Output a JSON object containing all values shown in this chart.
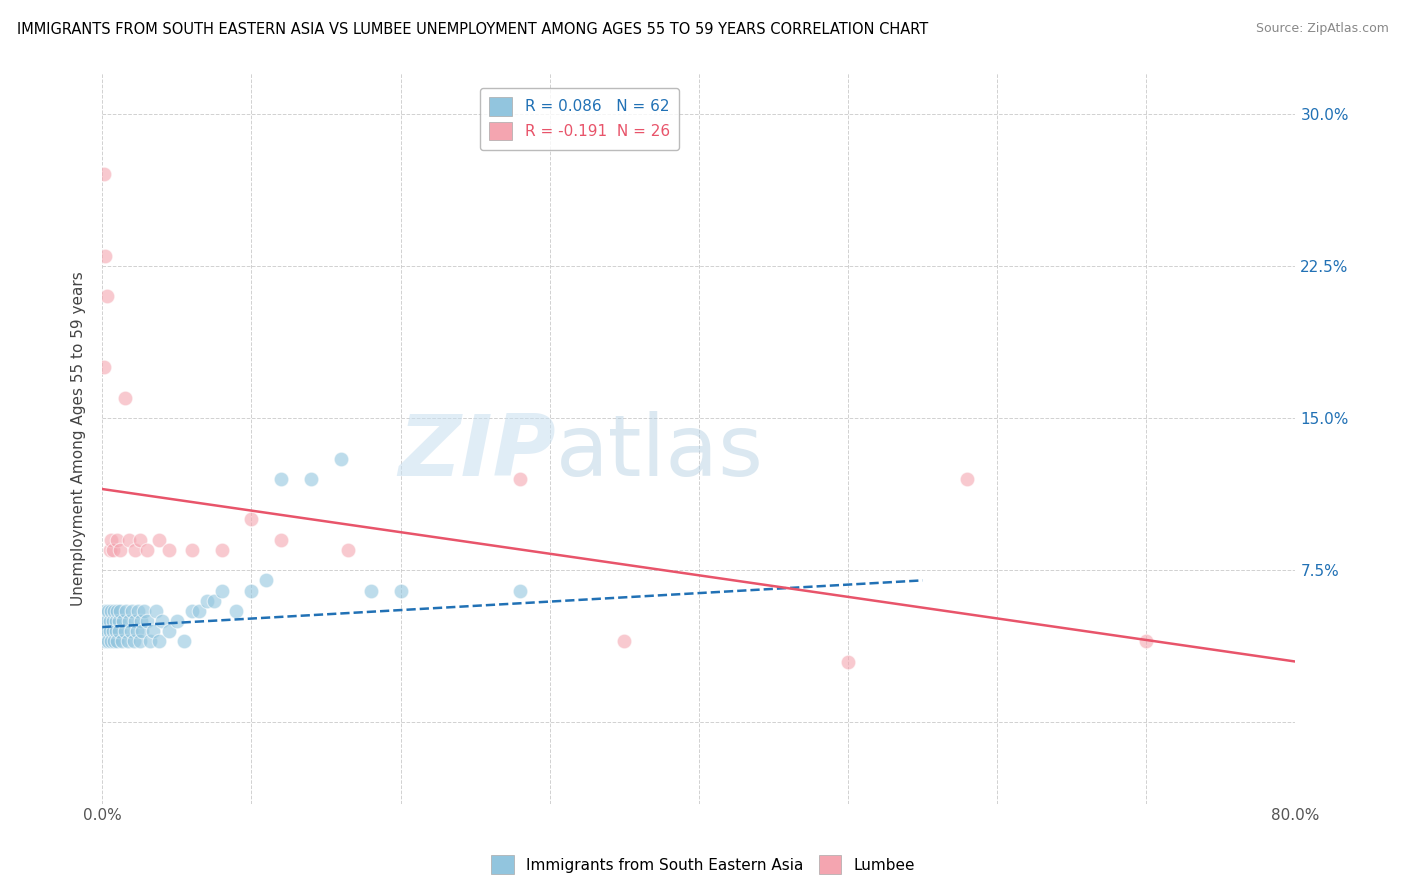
{
  "title": "IMMIGRANTS FROM SOUTH EASTERN ASIA VS LUMBEE UNEMPLOYMENT AMONG AGES 55 TO 59 YEARS CORRELATION CHART",
  "source": "Source: ZipAtlas.com",
  "ylabel": "Unemployment Among Ages 55 to 59 years",
  "xlim": [
    0.0,
    0.8
  ],
  "ylim": [
    -0.04,
    0.32
  ],
  "xticks": [
    0.0,
    0.1,
    0.2,
    0.3,
    0.4,
    0.5,
    0.6,
    0.7,
    0.8
  ],
  "xticklabels": [
    "0.0%",
    "",
    "",
    "",
    "",
    "",
    "",
    "",
    "80.0%"
  ],
  "yticks": [
    0.0,
    0.075,
    0.15,
    0.225,
    0.3
  ],
  "yticklabels": [
    "",
    "7.5%",
    "15.0%",
    "22.5%",
    "30.0%"
  ],
  "blue_r": 0.086,
  "blue_n": 62,
  "pink_r": -0.191,
  "pink_n": 26,
  "blue_color": "#92c5de",
  "pink_color": "#f4a5b0",
  "blue_line_color": "#2171b5",
  "pink_line_color": "#e8546a",
  "watermark_left": "ZIP",
  "watermark_right": "atlas",
  "blue_scatter_x": [
    0.001,
    0.001,
    0.002,
    0.002,
    0.003,
    0.003,
    0.004,
    0.004,
    0.005,
    0.005,
    0.006,
    0.006,
    0.007,
    0.007,
    0.008,
    0.008,
    0.009,
    0.009,
    0.01,
    0.01,
    0.011,
    0.011,
    0.012,
    0.013,
    0.014,
    0.015,
    0.016,
    0.017,
    0.018,
    0.019,
    0.02,
    0.021,
    0.022,
    0.023,
    0.024,
    0.025,
    0.026,
    0.027,
    0.028,
    0.03,
    0.032,
    0.034,
    0.036,
    0.038,
    0.04,
    0.045,
    0.05,
    0.055,
    0.06,
    0.065,
    0.07,
    0.075,
    0.08,
    0.09,
    0.1,
    0.11,
    0.12,
    0.14,
    0.16,
    0.18,
    0.2,
    0.28
  ],
  "blue_scatter_y": [
    0.05,
    0.045,
    0.055,
    0.04,
    0.05,
    0.045,
    0.055,
    0.04,
    0.05,
    0.045,
    0.055,
    0.04,
    0.05,
    0.045,
    0.055,
    0.04,
    0.05,
    0.045,
    0.055,
    0.04,
    0.05,
    0.045,
    0.055,
    0.04,
    0.05,
    0.045,
    0.055,
    0.04,
    0.05,
    0.045,
    0.055,
    0.04,
    0.05,
    0.045,
    0.055,
    0.04,
    0.05,
    0.045,
    0.055,
    0.05,
    0.04,
    0.045,
    0.055,
    0.04,
    0.05,
    0.045,
    0.05,
    0.04,
    0.055,
    0.055,
    0.06,
    0.06,
    0.065,
    0.055,
    0.065,
    0.07,
    0.12,
    0.12,
    0.13,
    0.065,
    0.065,
    0.065
  ],
  "pink_scatter_x": [
    0.001,
    0.002,
    0.003,
    0.005,
    0.006,
    0.007,
    0.01,
    0.012,
    0.015,
    0.018,
    0.022,
    0.025,
    0.03,
    0.038,
    0.045,
    0.06,
    0.08,
    0.1,
    0.12,
    0.165,
    0.28,
    0.35,
    0.5,
    0.58,
    0.7,
    0.001
  ],
  "pink_scatter_y": [
    0.27,
    0.23,
    0.21,
    0.085,
    0.09,
    0.085,
    0.09,
    0.085,
    0.16,
    0.09,
    0.085,
    0.09,
    0.085,
    0.09,
    0.085,
    0.085,
    0.085,
    0.1,
    0.09,
    0.085,
    0.12,
    0.04,
    0.03,
    0.12,
    0.04,
    0.175
  ],
  "blue_line_x": [
    0.0,
    0.55
  ],
  "blue_line_y": [
    0.047,
    0.07
  ],
  "pink_line_x": [
    0.0,
    0.8
  ],
  "pink_line_y": [
    0.115,
    0.03
  ]
}
